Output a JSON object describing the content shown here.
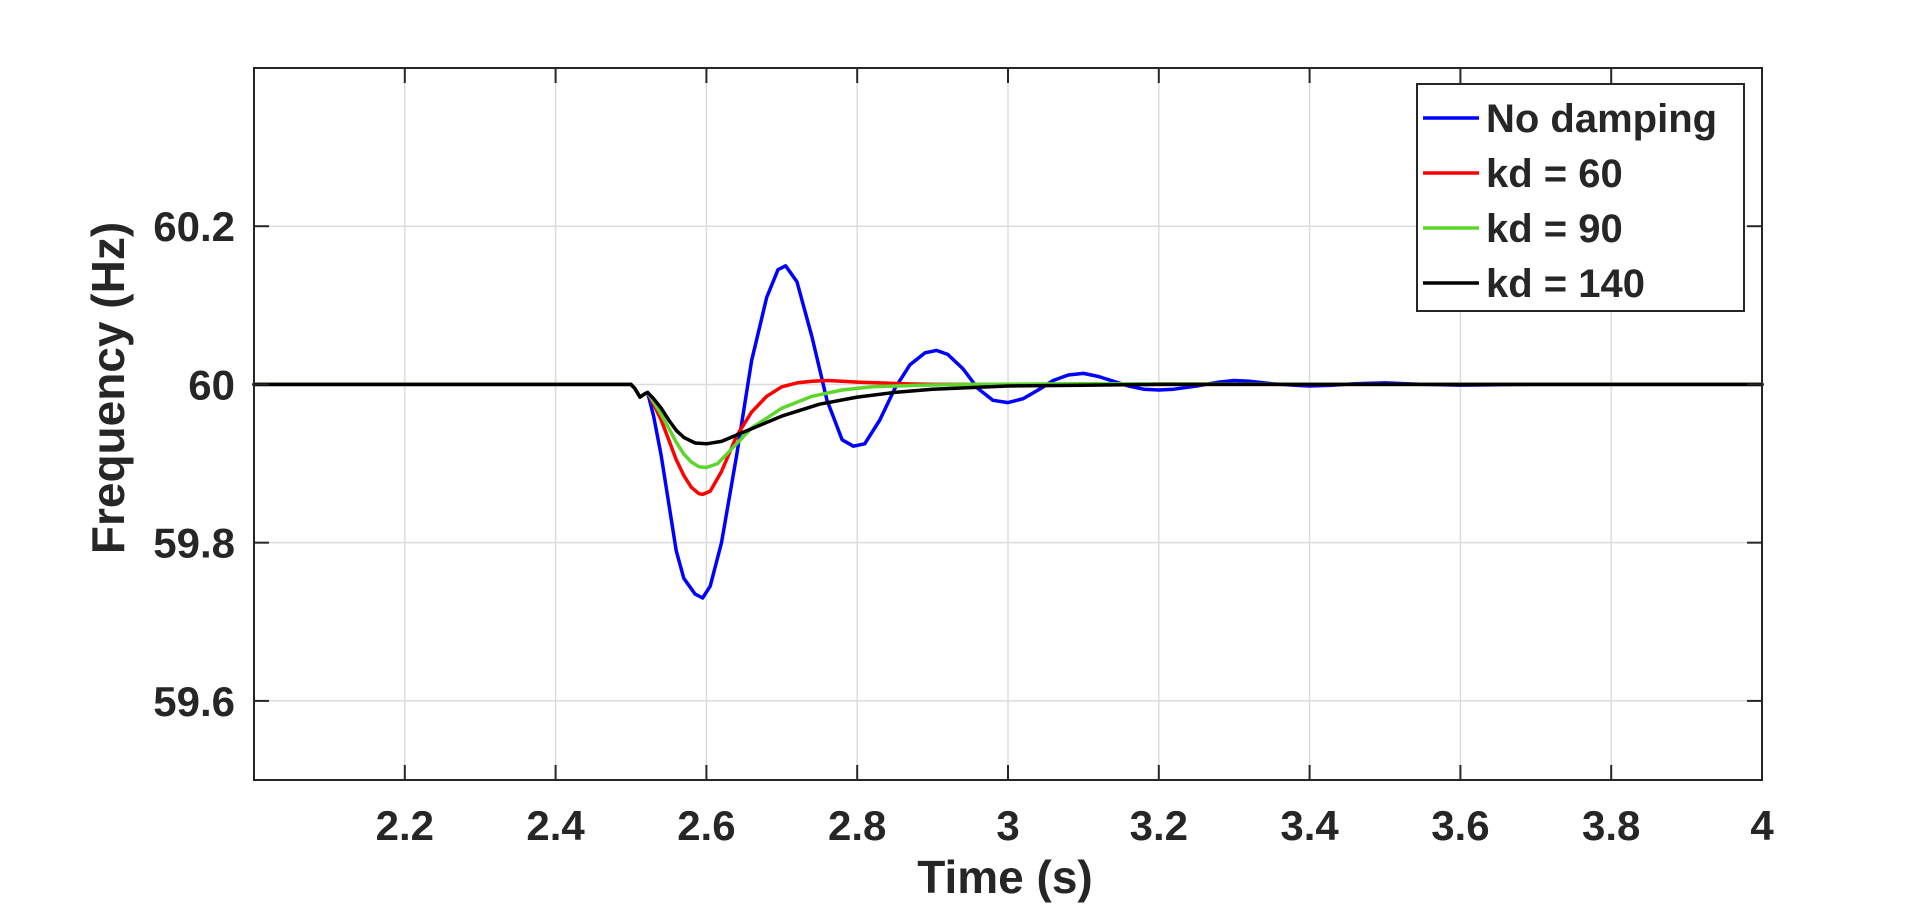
{
  "chart_data": {
    "type": "line",
    "title": "",
    "xlabel": "Time (s)",
    "ylabel": "Frequency (Hz)",
    "xlim": [
      2.0,
      4.0
    ],
    "ylim": [
      59.5,
      60.4
    ],
    "x_ticks": [
      2.2,
      2.4,
      2.6,
      2.8,
      3,
      3.2,
      3.4,
      3.6,
      3.8,
      4
    ],
    "x_tick_labels": [
      "2.2",
      "2.4",
      "2.6",
      "2.8",
      "3",
      "3.2",
      "3.4",
      "3.6",
      "3.8",
      "4"
    ],
    "y_ticks": [
      59.6,
      59.8,
      60,
      60.2
    ],
    "y_tick_labels": [
      "59.6",
      "59.8",
      "60",
      "60.2"
    ],
    "grid": true,
    "legend_position": "top-right",
    "series": [
      {
        "name": "No damping",
        "color": "#0000ff",
        "points": [
          [
            2.0,
            60.0
          ],
          [
            2.5,
            60.0
          ],
          [
            2.505,
            59.995
          ],
          [
            2.512,
            59.984
          ],
          [
            2.518,
            59.988
          ],
          [
            2.522,
            59.99
          ],
          [
            2.53,
            59.96
          ],
          [
            2.54,
            59.91
          ],
          [
            2.55,
            59.85
          ],
          [
            2.56,
            59.79
          ],
          [
            2.57,
            59.755
          ],
          [
            2.585,
            59.735
          ],
          [
            2.595,
            59.73
          ],
          [
            2.605,
            59.745
          ],
          [
            2.62,
            59.8
          ],
          [
            2.64,
            59.91
          ],
          [
            2.66,
            60.03
          ],
          [
            2.68,
            60.11
          ],
          [
            2.695,
            60.145
          ],
          [
            2.705,
            60.15
          ],
          [
            2.72,
            60.13
          ],
          [
            2.74,
            60.06
          ],
          [
            2.76,
            59.98
          ],
          [
            2.78,
            59.93
          ],
          [
            2.795,
            59.922
          ],
          [
            2.81,
            59.925
          ],
          [
            2.83,
            59.955
          ],
          [
            2.85,
            59.995
          ],
          [
            2.87,
            60.025
          ],
          [
            2.89,
            60.04
          ],
          [
            2.905,
            60.043
          ],
          [
            2.92,
            60.038
          ],
          [
            2.94,
            60.02
          ],
          [
            2.96,
            59.995
          ],
          [
            2.98,
            59.98
          ],
          [
            3.0,
            59.977
          ],
          [
            3.02,
            59.982
          ],
          [
            3.04,
            59.993
          ],
          [
            3.06,
            60.005
          ],
          [
            3.08,
            60.012
          ],
          [
            3.1,
            60.014
          ],
          [
            3.12,
            60.01
          ],
          [
            3.14,
            60.004
          ],
          [
            3.16,
            59.998
          ],
          [
            3.18,
            59.994
          ],
          [
            3.2,
            59.993
          ],
          [
            3.22,
            59.994
          ],
          [
            3.25,
            59.998
          ],
          [
            3.28,
            60.003
          ],
          [
            3.3,
            60.005
          ],
          [
            3.32,
            60.004
          ],
          [
            3.35,
            60.001
          ],
          [
            3.38,
            59.999
          ],
          [
            3.4,
            59.998
          ],
          [
            3.43,
            59.999
          ],
          [
            3.46,
            60.001
          ],
          [
            3.5,
            60.002
          ],
          [
            3.55,
            60.0
          ],
          [
            3.6,
            59.999
          ],
          [
            3.7,
            60.0
          ],
          [
            3.8,
            60.0
          ],
          [
            4.0,
            60.0
          ]
        ]
      },
      {
        "name": "kd = 60",
        "color": "#ff0000",
        "points": [
          [
            2.0,
            60.0
          ],
          [
            2.5,
            60.0
          ],
          [
            2.505,
            59.995
          ],
          [
            2.512,
            59.984
          ],
          [
            2.518,
            59.988
          ],
          [
            2.522,
            59.99
          ],
          [
            2.53,
            59.975
          ],
          [
            2.54,
            59.955
          ],
          [
            2.55,
            59.93
          ],
          [
            2.56,
            59.905
          ],
          [
            2.57,
            59.885
          ],
          [
            2.58,
            59.87
          ],
          [
            2.59,
            59.862
          ],
          [
            2.595,
            59.861
          ],
          [
            2.605,
            59.865
          ],
          [
            2.62,
            59.89
          ],
          [
            2.64,
            59.935
          ],
          [
            2.66,
            59.965
          ],
          [
            2.68,
            59.985
          ],
          [
            2.7,
            59.997
          ],
          [
            2.72,
            60.002
          ],
          [
            2.74,
            60.004
          ],
          [
            2.76,
            60.005
          ],
          [
            2.78,
            60.004
          ],
          [
            2.8,
            60.003
          ],
          [
            2.83,
            60.002
          ],
          [
            2.86,
            60.001
          ],
          [
            2.9,
            60.0
          ],
          [
            3.0,
            60.0
          ],
          [
            4.0,
            60.0
          ]
        ]
      },
      {
        "name": "kd = 90",
        "color": "#5dd62c",
        "points": [
          [
            2.0,
            60.0
          ],
          [
            2.5,
            60.0
          ],
          [
            2.505,
            59.995
          ],
          [
            2.512,
            59.984
          ],
          [
            2.518,
            59.988
          ],
          [
            2.522,
            59.99
          ],
          [
            2.53,
            59.978
          ],
          [
            2.54,
            59.962
          ],
          [
            2.55,
            59.945
          ],
          [
            2.56,
            59.927
          ],
          [
            2.57,
            59.912
          ],
          [
            2.58,
            59.902
          ],
          [
            2.59,
            59.896
          ],
          [
            2.6,
            59.895
          ],
          [
            2.615,
            59.9
          ],
          [
            2.63,
            59.915
          ],
          [
            2.66,
            59.945
          ],
          [
            2.7,
            59.97
          ],
          [
            2.74,
            59.985
          ],
          [
            2.78,
            59.993
          ],
          [
            2.82,
            59.997
          ],
          [
            2.88,
            59.999
          ],
          [
            2.95,
            60.0
          ],
          [
            3.1,
            60.001
          ],
          [
            3.5,
            60.0
          ],
          [
            4.0,
            60.0
          ]
        ]
      },
      {
        "name": "kd = 140",
        "color": "#000000",
        "points": [
          [
            2.0,
            60.0
          ],
          [
            2.5,
            60.0
          ],
          [
            2.505,
            59.995
          ],
          [
            2.512,
            59.984
          ],
          [
            2.518,
            59.988
          ],
          [
            2.522,
            59.99
          ],
          [
            2.53,
            59.982
          ],
          [
            2.54,
            59.97
          ],
          [
            2.55,
            59.955
          ],
          [
            2.56,
            59.942
          ],
          [
            2.57,
            59.933
          ],
          [
            2.585,
            59.926
          ],
          [
            2.6,
            59.925
          ],
          [
            2.62,
            59.928
          ],
          [
            2.65,
            59.94
          ],
          [
            2.7,
            59.96
          ],
          [
            2.75,
            59.975
          ],
          [
            2.8,
            59.984
          ],
          [
            2.85,
            59.99
          ],
          [
            2.9,
            59.994
          ],
          [
            2.95,
            59.996
          ],
          [
            3.0,
            59.998
          ],
          [
            3.1,
            59.999
          ],
          [
            3.2,
            60.0
          ],
          [
            4.0,
            60.0
          ]
        ]
      }
    ]
  }
}
